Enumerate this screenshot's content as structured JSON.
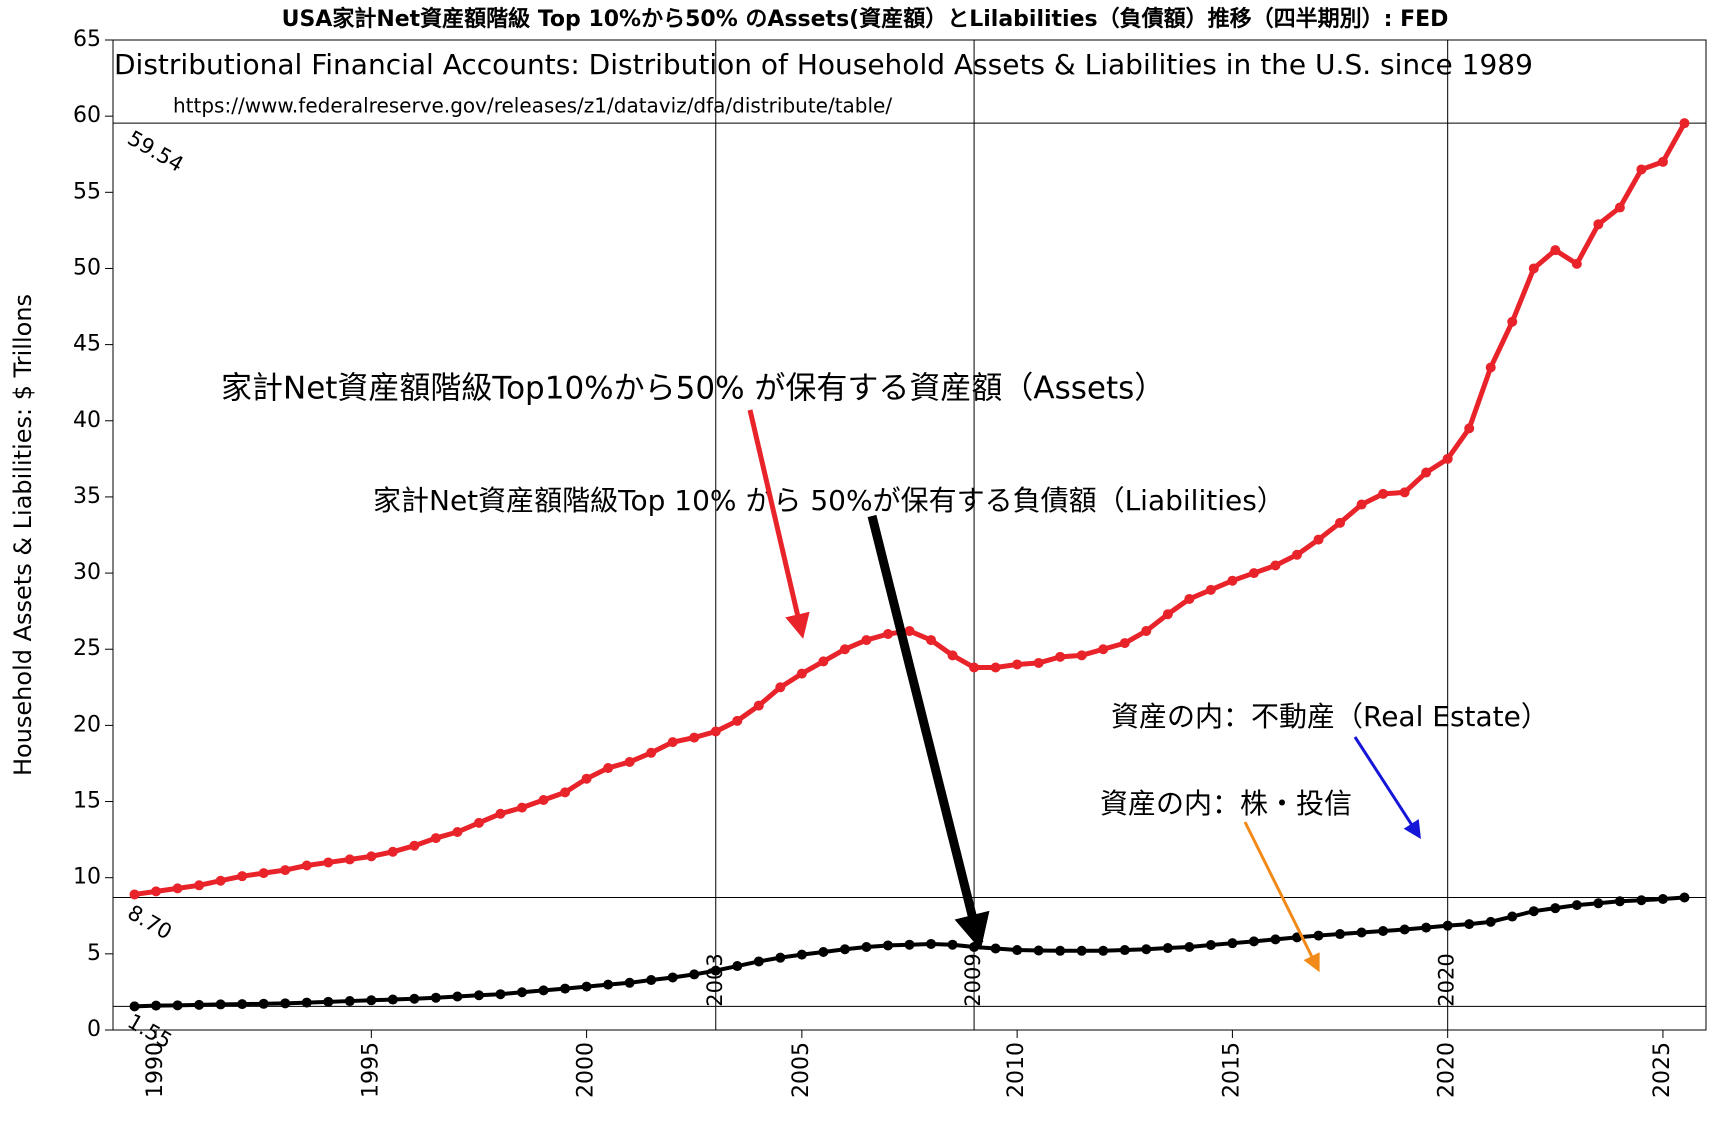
{
  "chart_data": {
    "type": "line",
    "title": "USA家計Net資産額階級 Top 10%から50% のAssets(資産額）とLilabilities（負債額）推移（四半期別）: FED",
    "subtitle": "Distributional Financial Accounts: Distribution of Household Assets & Liabilities in the U.S. since 1989",
    "source": "https://www.federalreserve.gov/releases/z1/dataviz/dfa/distribute/table/",
    "ylabel": "Household Assets & Liabilities:  $ Trillons",
    "annotations": [
      "家計Net資産額階級Top10%から50% が保有する資産額（Assets）",
      "家計Net資産額階級Top 10% から 50%が保有する負債額（Liabilities）",
      "資産の内：不動産（Real Estate）",
      "資産の内：株・投信"
    ],
    "xlim": [
      1989,
      2026
    ],
    "xticks": [
      1990,
      1995,
      2000,
      2005,
      2010,
      2015,
      2020,
      2025
    ],
    "ylim": [
      0,
      65
    ],
    "yticks": [
      0,
      5,
      10,
      15,
      20,
      25,
      30,
      35,
      40,
      45,
      50,
      55,
      60,
      65
    ],
    "hlines": [
      59.54,
      {
        "value": 8.7,
        "label": "8.70"
      },
      1.55
    ],
    "vlines": [
      2003,
      2009,
      2020
    ],
    "x": [
      1989.5,
      1990,
      1990.5,
      1991,
      1991.5,
      1992,
      1992.5,
      1993,
      1993.5,
      1994,
      1994.5,
      1995,
      1995.5,
      1996,
      1996.5,
      1997,
      1997.5,
      1998,
      1998.5,
      1999,
      1999.5,
      2000,
      2000.5,
      2001,
      2001.5,
      2002,
      2002.5,
      2003,
      2003.5,
      2004,
      2004.5,
      2005,
      2005.5,
      2006,
      2006.5,
      2007,
      2007.5,
      2008,
      2008.5,
      2009,
      2009.5,
      2010,
      2010.5,
      2011,
      2011.5,
      2012,
      2012.5,
      2013,
      2013.5,
      2014,
      2014.5,
      2015,
      2015.5,
      2016,
      2016.5,
      2017,
      2017.5,
      2018,
      2018.5,
      2019,
      2019.5,
      2020,
      2020.5,
      2021,
      2021.5,
      2022,
      2022.5,
      2023,
      2023.5,
      2024,
      2024.5,
      2025,
      2025.5
    ],
    "series": [
      {
        "color": "#e8232a",
        "values": [
          8.9,
          9.1,
          9.3,
          9.5,
          9.8,
          10.1,
          10.3,
          10.5,
          10.8,
          11.0,
          11.2,
          11.4,
          11.7,
          12.1,
          12.6,
          13.0,
          13.6,
          14.2,
          14.6,
          15.1,
          15.6,
          16.5,
          17.2,
          17.6,
          18.2,
          18.9,
          19.2,
          19.6,
          20.3,
          21.3,
          22.5,
          23.4,
          24.2,
          25.0,
          25.6,
          26.0,
          26.2,
          25.6,
          24.6,
          23.8,
          23.8,
          24.0,
          24.1,
          24.5,
          24.6,
          25.0,
          25.4,
          26.2,
          27.3,
          28.3,
          28.9,
          29.5,
          30.0,
          30.5,
          31.2,
          32.2,
          33.3,
          34.5,
          35.2,
          35.3,
          36.6,
          37.5,
          39.5,
          43.5,
          46.5,
          50.0,
          51.2,
          50.3,
          52.9,
          54.0,
          56.5,
          57.0,
          59.54
        ]
      },
      {
        "color": "#000000",
        "values": [
          1.55,
          1.6,
          1.62,
          1.65,
          1.68,
          1.7,
          1.72,
          1.75,
          1.8,
          1.85,
          1.9,
          1.95,
          2.0,
          2.05,
          2.12,
          2.2,
          2.28,
          2.35,
          2.48,
          2.6,
          2.72,
          2.85,
          2.98,
          3.1,
          3.28,
          3.45,
          3.65,
          3.9,
          4.2,
          4.5,
          4.75,
          4.95,
          5.12,
          5.3,
          5.45,
          5.55,
          5.6,
          5.65,
          5.6,
          5.45,
          5.35,
          5.25,
          5.22,
          5.2,
          5.2,
          5.2,
          5.25,
          5.3,
          5.38,
          5.45,
          5.58,
          5.7,
          5.82,
          5.95,
          6.08,
          6.2,
          6.3,
          6.4,
          6.5,
          6.6,
          6.72,
          6.85,
          6.95,
          7.1,
          7.45,
          7.8,
          8.0,
          8.2,
          8.32,
          8.45,
          8.52,
          8.6,
          8.7
        ]
      }
    ]
  }
}
